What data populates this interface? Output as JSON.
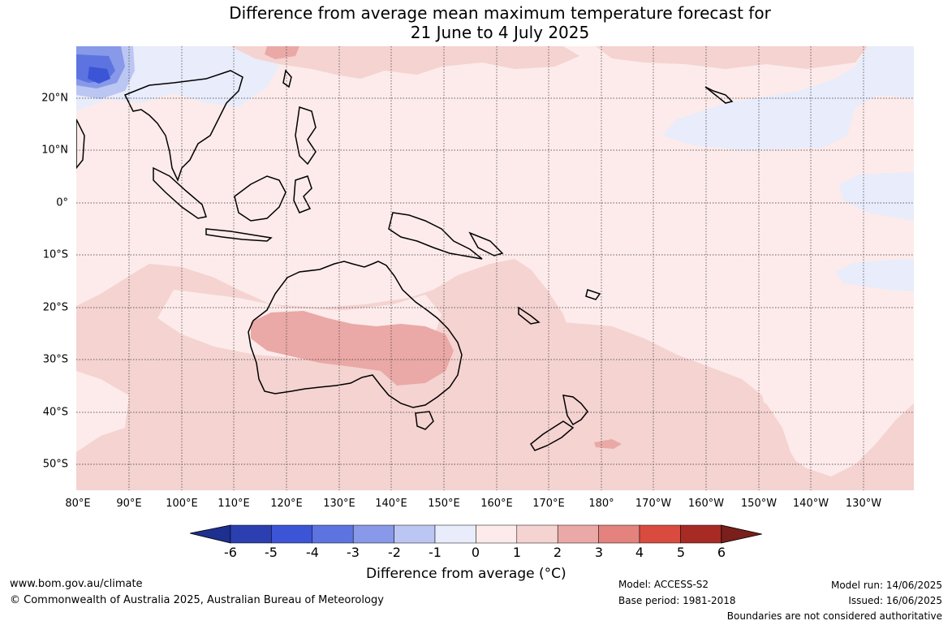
{
  "title_line1": "Difference from average mean maximum temperature forecast for",
  "title_line2": "21 June to 4 July 2025",
  "lat_labels": [
    "20°N",
    "10°N",
    "0°",
    "10°S",
    "20°S",
    "30°S",
    "40°S",
    "50°S"
  ],
  "lon_labels": [
    "80°E",
    "90°E",
    "100°E",
    "110°E",
    "120°E",
    "130°E",
    "140°E",
    "150°E",
    "160°E",
    "170°E",
    "180°",
    "170°W",
    "160°W",
    "150°W",
    "140°W",
    "130°W"
  ],
  "colorbar": {
    "ticks": [
      "-6",
      "-5",
      "-4",
      "-3",
      "-2",
      "-1",
      "0",
      "1",
      "2",
      "3",
      "4",
      "5",
      "6"
    ],
    "colors": [
      "#1d2f8f",
      "#2b3fb0",
      "#3b55d6",
      "#5d74e0",
      "#8799e8",
      "#bcc6f2",
      "#e8ecfb",
      "#fcebea",
      "#f4d3d1",
      "#eaa9a6",
      "#e4827d",
      "#d94b3f",
      "#a82a25",
      "#7a1f1b"
    ],
    "label": "Difference from average (°C)"
  },
  "footer": {
    "url": "www.bom.gov.au/climate",
    "copyright": "© Commonwealth of Australia 2025, Australian Bureau of Meteorology",
    "model": "Model: ACCESS-S2",
    "base_period": "Base period: 1981-2018",
    "model_run": "Model run: 14/06/2025",
    "issued": "Issued: 16/06/2025",
    "disclaimer": "Boundaries are not considered authoritative"
  }
}
